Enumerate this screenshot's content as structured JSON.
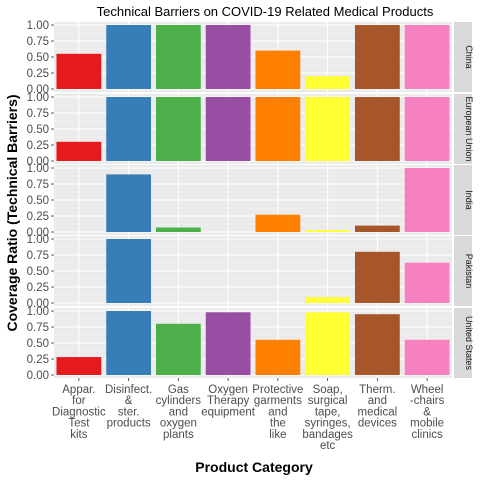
{
  "chart_data": {
    "type": "bar",
    "title": "Technical Barriers on COVID-19 Related Medical Products",
    "xlabel": "Product Category",
    "ylabel": "Coverage Ratio (Technical Barriers)",
    "ylim": [
      0,
      1
    ],
    "yticks": [
      "0.00",
      "0.25",
      "0.50",
      "0.75",
      "1.00"
    ],
    "categories": [
      [
        "Appar.",
        "for",
        "Diagnostic",
        "Test",
        "kits"
      ],
      [
        "Disinfect.",
        "&",
        "ster.",
        "products"
      ],
      [
        "Gas",
        "cylinders",
        "and",
        "oxygen",
        "plants"
      ],
      [
        "Oxygen",
        "Therapy",
        "equipment"
      ],
      [
        "Protective",
        "garments",
        "and",
        "the",
        "like"
      ],
      [
        "Soap,",
        "surgical",
        "tape,",
        "syringes,",
        "bandages",
        "etc"
      ],
      [
        "Therm.",
        "and",
        "medical",
        "devices"
      ],
      [
        "Wheel",
        "-chairs",
        "&",
        "mobile",
        "clinics"
      ]
    ],
    "colors": [
      "#e41a1c",
      "#377eb8",
      "#4daf4a",
      "#984ea3",
      "#ff7f00",
      "#ffff33",
      "#a65628",
      "#f781bf"
    ],
    "panels": [
      {
        "name": "China",
        "values": [
          0.55,
          1.0,
          1.0,
          1.0,
          0.6,
          0.2,
          1.0,
          1.0
        ]
      },
      {
        "name": "European Union",
        "values": [
          0.3,
          1.0,
          1.0,
          1.0,
          1.0,
          1.0,
          1.0,
          1.0
        ]
      },
      {
        "name": "India",
        "values": [
          0.0,
          0.9,
          0.07,
          0.0,
          0.27,
          0.03,
          0.1,
          1.0
        ]
      },
      {
        "name": "Pakistan",
        "values": [
          0.0,
          1.0,
          0.0,
          0.0,
          0.0,
          0.09,
          0.8,
          0.63
        ]
      },
      {
        "name": "United States",
        "values": [
          0.28,
          1.0,
          0.8,
          0.98,
          0.55,
          0.98,
          0.95,
          0.55
        ]
      }
    ],
    "grid": true
  }
}
